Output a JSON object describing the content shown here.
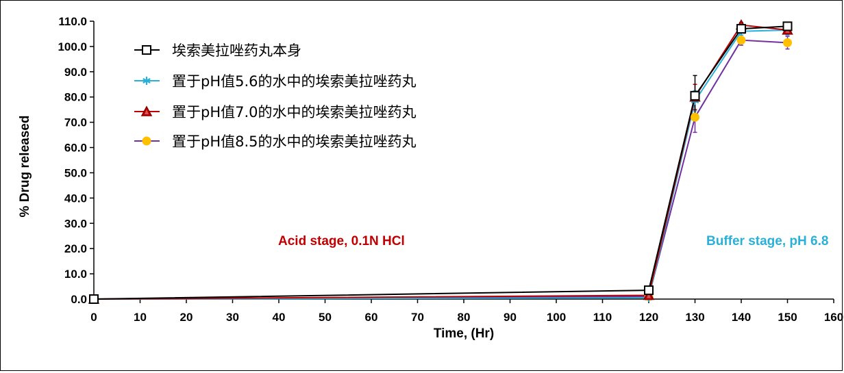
{
  "chart_data": {
    "type": "line",
    "xlabel": "Time, (Hr)",
    "ylabel": "% Drug released",
    "xlim": [
      0,
      160
    ],
    "ylim": [
      0,
      110
    ],
    "x_ticks": [
      "0",
      "10",
      "20",
      "30",
      "40",
      "50",
      "60",
      "70",
      "80",
      "90",
      "100",
      "110",
      "120",
      "130",
      "140",
      "150",
      "160"
    ],
    "y_ticks": [
      "0.0",
      "10.0",
      "20.0",
      "30.0",
      "40.0",
      "50.0",
      "60.0",
      "70.0",
      "80.0",
      "90.0",
      "100.0",
      "110.0"
    ],
    "grid": false,
    "legend_position": "top-left",
    "annotations": [
      {
        "text": "Acid stage, 0.1N HCl",
        "color": "#c00000"
      },
      {
        "text": "Buffer stage, pH 6.8",
        "color": "#2ab0d8"
      }
    ],
    "series": [
      {
        "name": "埃索美拉唑药丸本身",
        "color": "#000000",
        "marker": "square",
        "x": [
          0,
          120,
          130,
          140,
          150
        ],
        "y": [
          0.0,
          3.5,
          80.5,
          107.0,
          108.0
        ],
        "err": [
          0,
          0.5,
          8.0,
          1.5,
          1.5
        ]
      },
      {
        "name": "置于pH值5.6的水中的埃索美拉唑药丸",
        "color": "#2ab0d8",
        "marker": "asterisk",
        "x": [
          0,
          120,
          130,
          140,
          150
        ],
        "y": [
          0.0,
          0.5,
          78.5,
          106.0,
          106.5
        ],
        "err": [
          0,
          0.3,
          4.0,
          1.5,
          2.0
        ]
      },
      {
        "name": "置于pH值7.0的水中的埃索美拉唑药丸",
        "color": "#c00000",
        "marker": "triangle",
        "x": [
          0,
          120,
          130,
          140,
          150
        ],
        "y": [
          0.0,
          1.5,
          80.0,
          108.5,
          106.5
        ],
        "err": [
          0,
          0.5,
          5.0,
          1.0,
          1.5
        ]
      },
      {
        "name": "置于pH值8.5的水中的埃索美拉唑药丸",
        "color": "#7030a0",
        "marker": "circle",
        "marker_fill": "#ffc000",
        "x": [
          0,
          120,
          130,
          140,
          150
        ],
        "y": [
          0.0,
          1.0,
          72.0,
          102.5,
          101.5
        ],
        "err": [
          0,
          0.5,
          6.0,
          2.0,
          2.5
        ]
      }
    ]
  }
}
